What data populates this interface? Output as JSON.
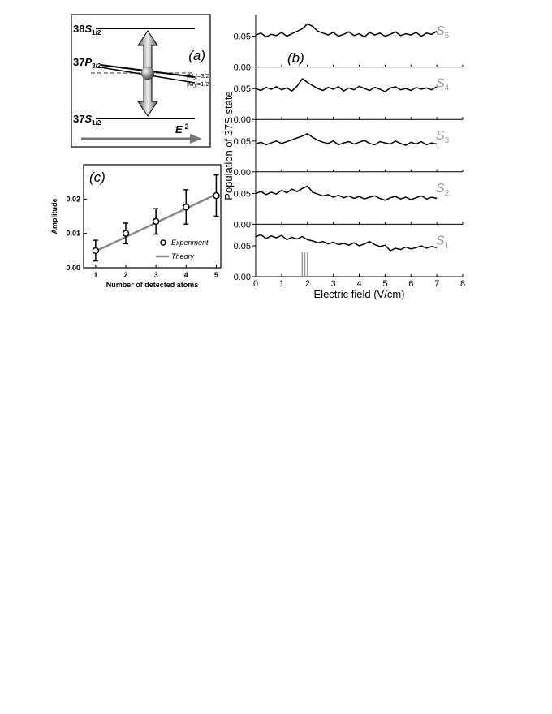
{
  "diagram": {
    "panel_label": "(a)",
    "levels": [
      {
        "prefix": "38",
        "letter": "S",
        "sub": "1/2"
      },
      {
        "prefix": "37",
        "letter": "P",
        "sub": "3/2"
      },
      {
        "prefix": "37",
        "letter": "S",
        "sub": "1/2"
      }
    ],
    "sublevels": [
      {
        "pre": "|M",
        "sub": "J",
        "post": "|=3/2"
      },
      {
        "pre": "|M",
        "sub": "J",
        "post": "|=1/2"
      }
    ],
    "field": {
      "text": "E",
      "sup": "2"
    }
  },
  "chart_data": [
    {
      "type": "line",
      "panel_label": "(b)",
      "ylabel": "Population of 37S state",
      "xlabel": "Electric field (V/cm)",
      "xlim": [
        0,
        8
      ],
      "xticks": [
        0,
        1,
        2,
        3,
        4,
        5,
        6,
        7,
        8
      ],
      "ylim": [
        0,
        0.085
      ],
      "yticks": [
        {
          "value": 0,
          "label": "0.00"
        },
        {
          "value": 0.05,
          "label": "0.05"
        }
      ],
      "x": [
        0,
        0.2,
        0.4,
        0.6,
        0.8,
        1.0,
        1.2,
        1.4,
        1.6,
        1.8,
        2.0,
        2.2,
        2.4,
        2.6,
        2.8,
        3.0,
        3.2,
        3.4,
        3.6,
        3.8,
        4.0,
        4.2,
        4.4,
        4.6,
        4.8,
        5.0,
        5.2,
        5.4,
        5.6,
        5.8,
        6.0,
        6.2,
        6.4,
        6.6,
        6.8,
        7.0
      ],
      "series": [
        {
          "name": "S",
          "name_sub": "5",
          "color": "#000000",
          "label_color": "#999999",
          "values": [
            0.052,
            0.055,
            0.049,
            0.053,
            0.051,
            0.056,
            0.05,
            0.054,
            0.058,
            0.062,
            0.07,
            0.066,
            0.058,
            0.055,
            0.052,
            0.056,
            0.05,
            0.053,
            0.057,
            0.051,
            0.054,
            0.049,
            0.056,
            0.052,
            0.055,
            0.05,
            0.053,
            0.057,
            0.051,
            0.054,
            0.052,
            0.056,
            0.05,
            0.055,
            0.053,
            0.058
          ]
        },
        {
          "name": "S",
          "name_sub": "4",
          "color": "#000000",
          "label_color": "#999999",
          "values": [
            0.05,
            0.047,
            0.052,
            0.049,
            0.053,
            0.048,
            0.051,
            0.046,
            0.054,
            0.066,
            0.06,
            0.055,
            0.05,
            0.047,
            0.052,
            0.049,
            0.053,
            0.046,
            0.051,
            0.048,
            0.054,
            0.05,
            0.047,
            0.052,
            0.049,
            0.045,
            0.051,
            0.053,
            0.048,
            0.05,
            0.047,
            0.052,
            0.049,
            0.051,
            0.048,
            0.053
          ]
        },
        {
          "name": "S",
          "name_sub": "3",
          "color": "#000000",
          "label_color": "#999999",
          "values": [
            0.045,
            0.048,
            0.044,
            0.047,
            0.05,
            0.046,
            0.049,
            0.052,
            0.055,
            0.058,
            0.062,
            0.056,
            0.051,
            0.048,
            0.046,
            0.05,
            0.044,
            0.047,
            0.049,
            0.045,
            0.048,
            0.051,
            0.046,
            0.044,
            0.049,
            0.047,
            0.045,
            0.05,
            0.046,
            0.043,
            0.048,
            0.045,
            0.049,
            0.044,
            0.047,
            0.045
          ]
        },
        {
          "name": "S",
          "name_sub": "2",
          "color": "#000000",
          "label_color": "#999999",
          "values": [
            0.05,
            0.053,
            0.048,
            0.052,
            0.049,
            0.055,
            0.051,
            0.057,
            0.053,
            0.058,
            0.062,
            0.052,
            0.049,
            0.046,
            0.048,
            0.044,
            0.047,
            0.043,
            0.046,
            0.042,
            0.045,
            0.041,
            0.044,
            0.046,
            0.042,
            0.039,
            0.043,
            0.045,
            0.041,
            0.044,
            0.04,
            0.043,
            0.046,
            0.041,
            0.044,
            0.042
          ]
        },
        {
          "name": "S",
          "name_sub": "1",
          "color": "#000000",
          "label_color": "#999999",
          "values": [
            0.065,
            0.068,
            0.062,
            0.066,
            0.063,
            0.067,
            0.06,
            0.064,
            0.061,
            0.065,
            0.06,
            0.058,
            0.055,
            0.057,
            0.053,
            0.056,
            0.052,
            0.054,
            0.051,
            0.055,
            0.05,
            0.053,
            0.057,
            0.052,
            0.049,
            0.051,
            0.042,
            0.046,
            0.044,
            0.048,
            0.045,
            0.047,
            0.05,
            0.046,
            0.049,
            0.047
          ]
        }
      ],
      "vlines": [
        1.8,
        1.9,
        2.0
      ],
      "vline_color": "#999999"
    },
    {
      "type": "scatter",
      "panel_label": "(c)",
      "ylabel": "Amplitude",
      "xlabel": "Number of detected atoms",
      "xlim": [
        0.6,
        5.15
      ],
      "xticks": [
        1,
        2,
        3,
        4,
        5
      ],
      "ylim": [
        0,
        0.03
      ],
      "yticks": [
        {
          "value": 0,
          "label": "0.00"
        },
        {
          "value": 0.01,
          "label": "0.01"
        },
        {
          "value": 0.02,
          "label": "0.02"
        }
      ],
      "series": [
        {
          "name": "Experiment",
          "color": "#000000",
          "x": [
            1,
            2,
            3,
            4,
            5
          ],
          "values": [
            0.005,
            0.01,
            0.0135,
            0.0177,
            0.021
          ],
          "errors": [
            0.003,
            0.003,
            0.0037,
            0.005,
            0.006
          ]
        },
        {
          "name": "Theory",
          "color": "#888888",
          "x": [
            1,
            5
          ],
          "values": [
            0.0048,
            0.0214
          ]
        }
      ]
    }
  ]
}
